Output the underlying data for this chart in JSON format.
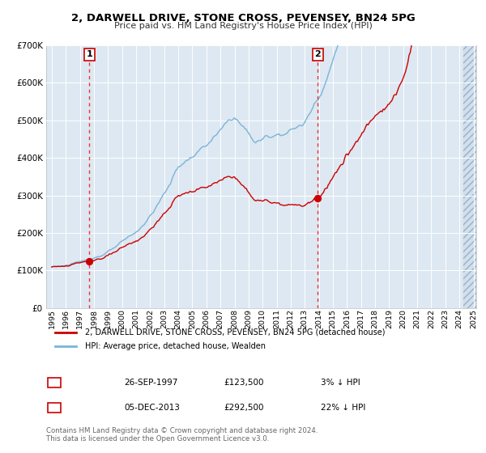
{
  "title": "2, DARWELL DRIVE, STONE CROSS, PEVENSEY, BN24 5PG",
  "subtitle": "Price paid vs. HM Land Registry's House Price Index (HPI)",
  "hpi_label": "HPI: Average price, detached house, Wealden",
  "price_label": "2, DARWELL DRIVE, STONE CROSS, PEVENSEY, BN24 5PG (detached house)",
  "footnote": "Contains HM Land Registry data © Crown copyright and database right 2024.\nThis data is licensed under the Open Government Licence v3.0.",
  "sale1_date": "26-SEP-1997",
  "sale1_price": 123500,
  "sale1_pct": "3% ↓ HPI",
  "sale2_date": "05-DEC-2013",
  "sale2_price": 292500,
  "sale2_pct": "22% ↓ HPI",
  "hpi_color": "#7ab4d8",
  "price_color": "#cc0000",
  "vline_color": "#ee3333",
  "bg_color": "#dde8f2",
  "ylim": [
    0,
    700000
  ],
  "yticks": [
    0,
    100000,
    200000,
    300000,
    400000,
    500000,
    600000,
    700000
  ],
  "xlim_start": 1994.6,
  "xlim_end": 2025.2
}
